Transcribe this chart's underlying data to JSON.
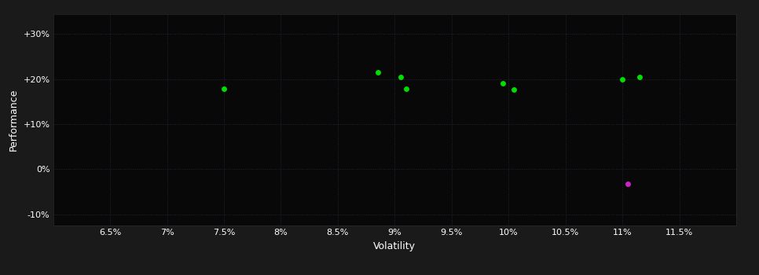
{
  "background_color": "#1a1a1a",
  "plot_bg_color": "#080808",
  "grid_color": "#2a2a2a",
  "xlabel": "Volatility",
  "ylabel": "Performance",
  "xlim": [
    0.06,
    0.12
  ],
  "ylim": [
    -0.125,
    0.345
  ],
  "xticks": [
    0.065,
    0.07,
    0.075,
    0.08,
    0.085,
    0.09,
    0.095,
    0.1,
    0.105,
    0.11,
    0.115
  ],
  "xtick_labels": [
    "6.5%",
    "7%",
    "7.5%",
    "8%",
    "8.5%",
    "9%",
    "9.5%",
    "10%",
    "10.5%",
    "11%",
    "11.5%"
  ],
  "yticks": [
    -0.1,
    0.0,
    0.1,
    0.2,
    0.3
  ],
  "ytick_labels": [
    "-10%",
    "0%",
    "+10%",
    "+20%",
    "+30%"
  ],
  "green_points": [
    [
      0.075,
      0.178
    ],
    [
      0.0885,
      0.215
    ],
    [
      0.0905,
      0.205
    ],
    [
      0.091,
      0.178
    ],
    [
      0.0995,
      0.191
    ],
    [
      0.1005,
      0.177
    ],
    [
      0.11,
      0.2
    ],
    [
      0.1115,
      0.204
    ]
  ],
  "magenta_points": [
    [
      0.1105,
      -0.032
    ]
  ],
  "green_color": "#00dd00",
  "magenta_color": "#cc22cc",
  "marker_size": 5,
  "font_color": "#ffffff",
  "tick_font_size": 8,
  "label_font_size": 9
}
